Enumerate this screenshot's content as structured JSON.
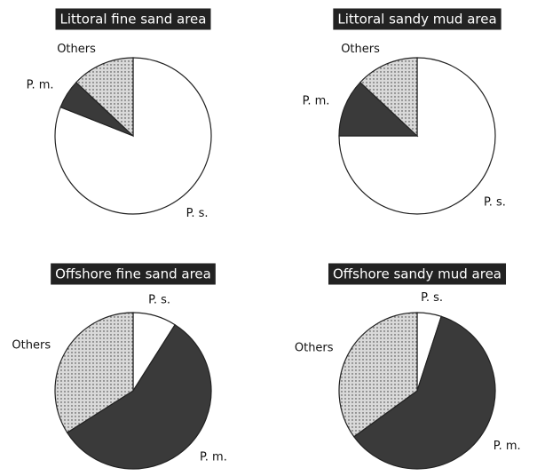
{
  "chart_data": [
    {
      "type": "pie",
      "title": "Littoral fine sand area",
      "categories": [
        "P. s.",
        "P. m.",
        "Others"
      ],
      "values": [
        81,
        6,
        13
      ],
      "colors": [
        "#ffffff",
        "#3a3a3a",
        "#d9d9d9"
      ]
    },
    {
      "type": "pie",
      "title": "Littoral sandy mud area",
      "categories": [
        "P. s.",
        "P. m.",
        "Others"
      ],
      "values": [
        75,
        12,
        13
      ],
      "colors": [
        "#ffffff",
        "#3a3a3a",
        "#d9d9d9"
      ]
    },
    {
      "type": "pie",
      "title": "Offshore fine sand area",
      "categories": [
        "P. s.",
        "P. m.",
        "Others"
      ],
      "values": [
        9,
        57,
        34
      ],
      "colors": [
        "#ffffff",
        "#3a3a3a",
        "#d9d9d9"
      ]
    },
    {
      "type": "pie",
      "title": "Offshore sandy mud area",
      "categories": [
        "P. s.",
        "P. m.",
        "Others"
      ],
      "values": [
        5,
        60,
        35
      ],
      "colors": [
        "#ffffff",
        "#3a3a3a",
        "#d9d9d9"
      ]
    }
  ]
}
